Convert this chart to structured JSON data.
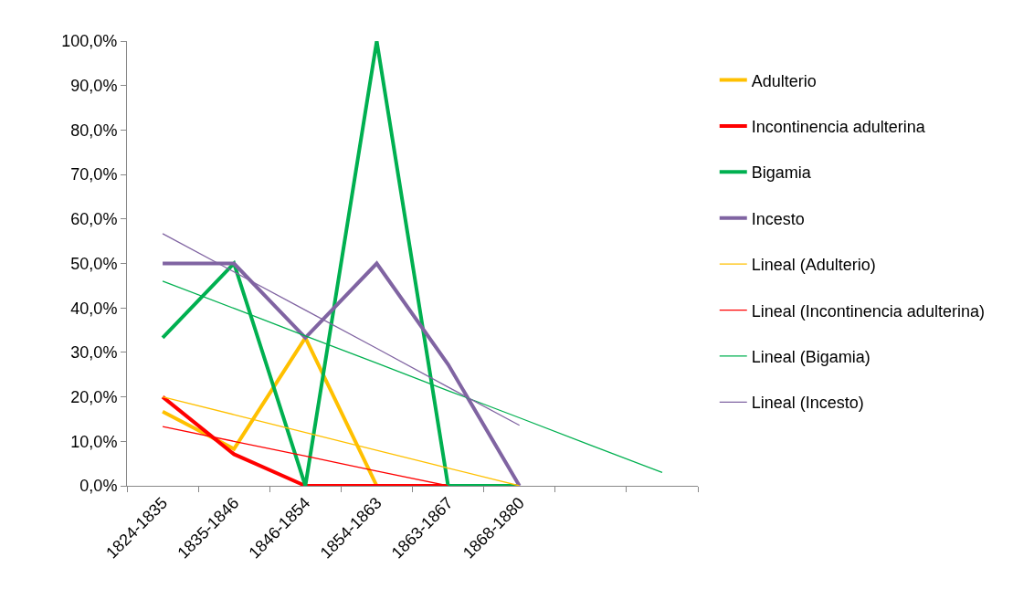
{
  "chart_data": {
    "type": "line",
    "categories": [
      "1824-1835",
      "1835-1846",
      "1846-1854",
      "1854-1863",
      "1863-1867",
      "1868-1880",
      null,
      null
    ],
    "ylim": [
      0,
      100
    ],
    "yticks": [
      {
        "value": 0,
        "label": "0,0%"
      },
      {
        "value": 10,
        "label": "10,0%"
      },
      {
        "value": 20,
        "label": "20,0%"
      },
      {
        "value": 30,
        "label": "30,0%"
      },
      {
        "value": 40,
        "label": "40,0%"
      },
      {
        "value": 50,
        "label": "50,0%"
      },
      {
        "value": 60,
        "label": "60,0%"
      },
      {
        "value": 70,
        "label": "70,0%"
      },
      {
        "value": 80,
        "label": "80,0%"
      },
      {
        "value": 90,
        "label": "90,0%"
      },
      {
        "value": 100,
        "label": "100,0%"
      }
    ],
    "grid": false,
    "legend": "right",
    "marker": "none",
    "line_style": "solid",
    "series": [
      {
        "name": "Adulterio",
        "color": "#ffc000",
        "values": [
          16.7,
          8.3,
          33.3,
          0,
          0,
          0,
          null,
          null
        ]
      },
      {
        "name": "Incontinencia adulterina",
        "color": "#ff0000",
        "values": [
          20,
          7.1,
          0,
          0,
          0,
          null,
          null,
          null
        ]
      },
      {
        "name": "Bigamia",
        "color": "#00b050",
        "values": [
          33.3,
          50,
          0,
          100,
          0,
          0,
          null,
          null
        ]
      },
      {
        "name": "Incesto",
        "color": "#8064a2",
        "values": [
          50,
          50,
          33.3,
          50,
          27.3,
          0,
          null,
          null
        ]
      },
      {
        "name": "Lineal (Adulterio)",
        "color": "#ffc000",
        "type": "line",
        "values": [
          20,
          16,
          12,
          8,
          4,
          0,
          null,
          null
        ]
      },
      {
        "name": "Lineal (Incontinencia adulterina)",
        "color": "#ff0000",
        "type": "line",
        "values": [
          13.3,
          10,
          6.7,
          3.3,
          0,
          null,
          null,
          null
        ]
      },
      {
        "name": "Lineal (Bigamia)",
        "color": "#00b050",
        "type": "line",
        "values": [
          46,
          39.9,
          33.7,
          27.6,
          21.4,
          15.3,
          9.1,
          3
        ]
      },
      {
        "name": "Lineal (Incesto)",
        "color": "#8064a2",
        "type": "line",
        "values": [
          56.7,
          48.1,
          39.5,
          30.9,
          22.2,
          13.6,
          null,
          null
        ]
      }
    ]
  }
}
